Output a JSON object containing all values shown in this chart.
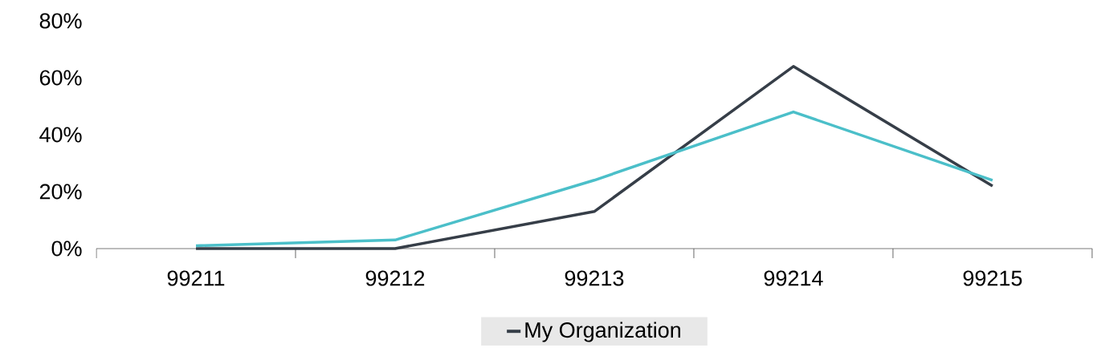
{
  "chart_data": {
    "type": "line",
    "categories": [
      "99211",
      "99212",
      "99213",
      "99214",
      "99215"
    ],
    "series": [
      {
        "name": "My Organization",
        "color": "#363e48",
        "values": [
          0,
          0,
          13,
          64,
          22
        ]
      },
      {
        "color": "#4bbfc9",
        "values": [
          1,
          3,
          24,
          48,
          24
        ]
      }
    ],
    "ylim": [
      0,
      80
    ],
    "yticks": [
      {
        "value": 0,
        "label": "0%"
      },
      {
        "value": 20,
        "label": "20%"
      },
      {
        "value": 40,
        "label": "40%"
      },
      {
        "value": 60,
        "label": "60%"
      },
      {
        "value": 80,
        "label": "80%"
      }
    ],
    "grid": false,
    "legend": "bottom",
    "marker": "none",
    "line_style": "solid"
  }
}
